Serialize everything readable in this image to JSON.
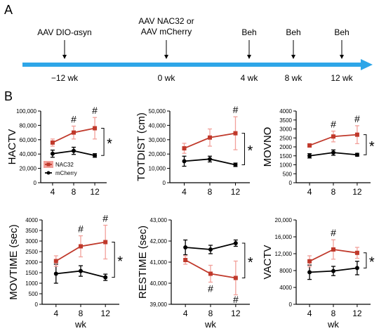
{
  "figure": {
    "panel_a_label": "A",
    "panel_b_label": "B",
    "timeline": {
      "events": [
        {
          "label": "AAV DIO-αsyn",
          "week": -12
        },
        {
          "label": "AAV NAC32 or\nAAV mCherry",
          "week": 0
        },
        {
          "label": "Beh",
          "week": 4
        },
        {
          "label": "Beh",
          "week": 8
        },
        {
          "label": "Beh",
          "week": 12
        }
      ],
      "week_labels": [
        "−12 wk",
        "0 wk",
        "4 wk",
        "8 wk",
        "12 wk"
      ],
      "arrow_color": "#2ea6e8"
    },
    "colors": {
      "NAC32": "#c0392b",
      "mCherry": "#000000",
      "NAC32_error": "#f2a09a"
    }
  },
  "chart_data": [
    {
      "type": "line",
      "ylabel": "HACTV",
      "xlabel": "",
      "x": [
        4,
        8,
        12
      ],
      "ylim": [
        0,
        100000
      ],
      "yticks": [
        0,
        20000,
        40000,
        60000,
        80000,
        100000
      ],
      "ytick_labels": [
        "0",
        "20,000",
        "40,000",
        "60,000",
        "80,000",
        "100,000"
      ],
      "series": [
        {
          "name": "NAC32",
          "values": [
            56000,
            70000,
            76000
          ],
          "err": [
            5000,
            9000,
            15000
          ]
        },
        {
          "name": "mCherry",
          "values": [
            40500,
            44500,
            38000
          ],
          "err": [
            5000,
            5000,
            2500
          ]
        }
      ],
      "significance": [
        {
          "x": 8,
          "label": "#",
          "position": "above"
        },
        {
          "x": 12,
          "label": "#",
          "position": "above"
        }
      ],
      "group_effect": "*",
      "legend": {
        "position": "bottom-left",
        "entries": [
          "NAC32",
          "mCherry"
        ]
      }
    },
    {
      "type": "line",
      "ylabel": "TOTDIST (cm)",
      "xlabel": "",
      "x": [
        4,
        8,
        12
      ],
      "ylim": [
        0,
        50000
      ],
      "yticks": [
        0,
        10000,
        20000,
        30000,
        40000,
        50000
      ],
      "ytick_labels": [
        "0",
        "10,000",
        "20,000",
        "30,000",
        "40,000",
        "50,000"
      ],
      "series": [
        {
          "name": "NAC32",
          "values": [
            24000,
            31500,
            34500
          ],
          "err": [
            3500,
            6000,
            11500
          ]
        },
        {
          "name": "mCherry",
          "values": [
            15000,
            16500,
            12500
          ],
          "err": [
            3500,
            2000,
            1200
          ]
        }
      ],
      "significance": [
        {
          "x": 12,
          "label": "#",
          "position": "above"
        }
      ],
      "group_effect": "*"
    },
    {
      "type": "line",
      "ylabel": "MOVNO",
      "xlabel": "",
      "x": [
        4,
        8,
        12
      ],
      "ylim": [
        0,
        4000
      ],
      "yticks": [
        0,
        500,
        1000,
        1500,
        2000,
        2500,
        3000,
        3500,
        4000
      ],
      "ytick_labels": [
        "0",
        "500",
        "1000",
        "1500",
        "2000",
        "2500",
        "3000",
        "3500",
        "4000"
      ],
      "series": [
        {
          "name": "NAC32",
          "values": [
            2080,
            2580,
            2680
          ],
          "err": [
            100,
            300,
            500
          ]
        },
        {
          "name": "mCherry",
          "values": [
            1500,
            1680,
            1560
          ],
          "err": [
            120,
            150,
            80
          ]
        }
      ],
      "significance": [
        {
          "x": 8,
          "label": "#",
          "position": "above"
        },
        {
          "x": 12,
          "label": "#",
          "position": "above"
        }
      ],
      "group_effect": "*"
    },
    {
      "type": "line",
      "ylabel": "MOVTIME (sec)",
      "xlabel": "wk",
      "x": [
        4,
        8,
        12
      ],
      "ylim": [
        0,
        4000
      ],
      "yticks": [
        0,
        500,
        1000,
        1500,
        2000,
        2500,
        3000,
        3500,
        4000
      ],
      "ytick_labels": [
        "0",
        "500",
        "1000",
        "1500",
        "2000",
        "2500",
        "3000",
        "3500",
        "4000"
      ],
      "series": [
        {
          "name": "NAC32",
          "values": [
            2050,
            2750,
            2950
          ],
          "err": [
            250,
            500,
            800
          ]
        },
        {
          "name": "mCherry",
          "values": [
            1450,
            1580,
            1280
          ],
          "err": [
            450,
            250,
            150
          ]
        }
      ],
      "significance": [
        {
          "x": 8,
          "label": "#",
          "position": "above"
        },
        {
          "x": 12,
          "label": "#",
          "position": "above"
        }
      ],
      "group_effect": "*"
    },
    {
      "type": "line",
      "ylabel": "RESTIME (sec)",
      "xlabel": "wk",
      "x": [
        4,
        8,
        12
      ],
      "ylim": [
        39000,
        43000
      ],
      "yticks": [
        39000,
        40000,
        41000,
        42000,
        43000
      ],
      "ytick_labels": [
        "39,000",
        "40,000",
        "41,000",
        "42,000",
        "43,000"
      ],
      "series": [
        {
          "name": "NAC32",
          "values": [
            41100,
            40450,
            40250
          ],
          "err": [
            200,
            400,
            800
          ]
        },
        {
          "name": "mCherry",
          "values": [
            41700,
            41600,
            41900
          ],
          "err": [
            350,
            200,
            150
          ]
        }
      ],
      "significance": [
        {
          "x": 8,
          "label": "#",
          "position": "below"
        },
        {
          "x": 12,
          "label": "#",
          "position": "below"
        }
      ],
      "group_effect": "*"
    },
    {
      "type": "line",
      "ylabel": "VACTV",
      "xlabel": "wk",
      "x": [
        4,
        8,
        12
      ],
      "ylim": [
        0,
        20000
      ],
      "yticks": [
        0,
        4000,
        8000,
        12000,
        16000,
        20000
      ],
      "ytick_labels": [
        "0",
        "4000",
        "8000",
        "12,000",
        "16,000",
        "20,000"
      ],
      "series": [
        {
          "name": "NAC32",
          "values": [
            10200,
            13000,
            12200
          ],
          "err": [
            1300,
            2300,
            1300
          ]
        },
        {
          "name": "mCherry",
          "values": [
            7600,
            7900,
            8600
          ],
          "err": [
            1700,
            1100,
            1600
          ]
        }
      ],
      "significance": [
        {
          "x": 8,
          "label": "#",
          "position": "above"
        }
      ],
      "group_effect": "*"
    }
  ]
}
